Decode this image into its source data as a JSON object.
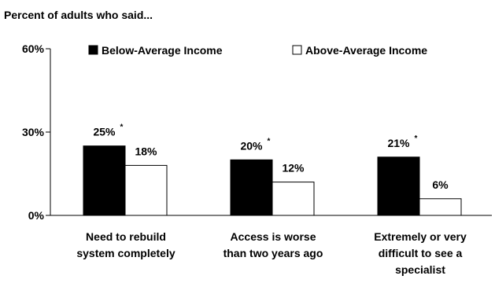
{
  "chart_data": {
    "type": "bar",
    "title": "Percent of adults who said...",
    "xlabel": "",
    "ylabel": "",
    "ylim": [
      0,
      60
    ],
    "yticks": [
      "0%",
      "30%",
      "60%"
    ],
    "ytick_values": [
      0,
      30,
      60
    ],
    "grid": false,
    "legend_placement": "top",
    "categories": [
      [
        "Need to rebuild",
        "system completely"
      ],
      [
        "Access is worse",
        "than two years ago"
      ],
      [
        "Extremely or very",
        "difficult to see a",
        "specialist"
      ]
    ],
    "series": [
      {
        "name": "Below-Average Income",
        "color": "#000000",
        "values": [
          25,
          20,
          21
        ],
        "labels": [
          "25%",
          "20%",
          "21%"
        ],
        "annotations": [
          "*",
          "*",
          "*"
        ]
      },
      {
        "name": "Above-Average Income",
        "color": "#ffffff",
        "values": [
          18,
          12,
          6
        ],
        "labels": [
          "18%",
          "12%",
          "6%"
        ],
        "annotations": [
          "",
          "",
          ""
        ]
      }
    ]
  }
}
